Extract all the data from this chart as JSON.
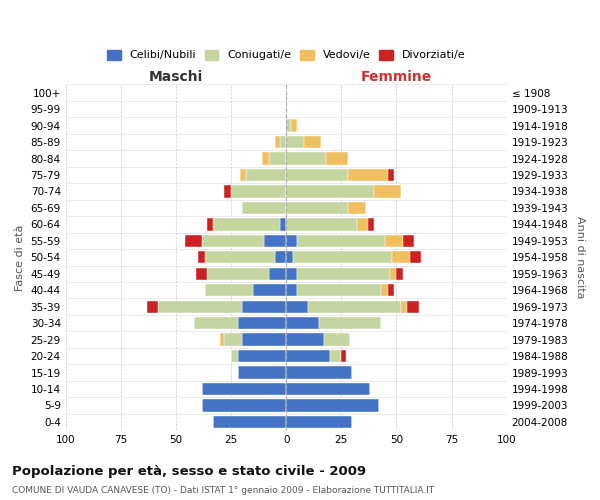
{
  "age_groups": [
    "0-4",
    "5-9",
    "10-14",
    "15-19",
    "20-24",
    "25-29",
    "30-34",
    "35-39",
    "40-44",
    "45-49",
    "50-54",
    "55-59",
    "60-64",
    "65-69",
    "70-74",
    "75-79",
    "80-84",
    "85-89",
    "90-94",
    "95-99",
    "100+"
  ],
  "birth_years": [
    "2004-2008",
    "1999-2003",
    "1994-1998",
    "1989-1993",
    "1984-1988",
    "1979-1983",
    "1974-1978",
    "1969-1973",
    "1964-1968",
    "1959-1963",
    "1954-1958",
    "1949-1953",
    "1944-1948",
    "1939-1943",
    "1934-1938",
    "1929-1933",
    "1924-1928",
    "1919-1923",
    "1914-1918",
    "1909-1913",
    "≤ 1908"
  ],
  "maschi": {
    "celibi": [
      33,
      38,
      38,
      22,
      22,
      20,
      22,
      20,
      15,
      8,
      5,
      10,
      3,
      0,
      0,
      0,
      0,
      0,
      0,
      0,
      0
    ],
    "coniugati": [
      0,
      0,
      0,
      0,
      3,
      8,
      20,
      38,
      22,
      28,
      32,
      28,
      30,
      20,
      25,
      18,
      8,
      3,
      0,
      0,
      0
    ],
    "vedovi": [
      0,
      0,
      0,
      0,
      0,
      2,
      0,
      0,
      0,
      0,
      0,
      0,
      0,
      0,
      0,
      3,
      3,
      2,
      0,
      0,
      0
    ],
    "divorziati": [
      0,
      0,
      0,
      0,
      0,
      0,
      0,
      5,
      0,
      5,
      3,
      8,
      3,
      0,
      3,
      0,
      0,
      0,
      0,
      0,
      0
    ]
  },
  "femmine": {
    "nubili": [
      30,
      42,
      38,
      30,
      20,
      17,
      15,
      10,
      5,
      5,
      3,
      5,
      0,
      0,
      0,
      0,
      0,
      0,
      0,
      0,
      0
    ],
    "coniugate": [
      0,
      0,
      0,
      0,
      5,
      12,
      28,
      42,
      38,
      42,
      45,
      40,
      32,
      28,
      40,
      28,
      18,
      8,
      2,
      0,
      0
    ],
    "vedove": [
      0,
      0,
      0,
      0,
      0,
      0,
      0,
      3,
      3,
      3,
      8,
      8,
      5,
      8,
      12,
      18,
      10,
      8,
      3,
      0,
      0
    ],
    "divorziate": [
      0,
      0,
      0,
      0,
      2,
      0,
      0,
      5,
      3,
      3,
      5,
      5,
      3,
      0,
      0,
      3,
      0,
      0,
      0,
      0,
      0
    ]
  },
  "color_celibi": "#4472c4",
  "color_coniugati": "#c5d5a0",
  "color_vedovi": "#f0c060",
  "color_divorziati": "#cc2222",
  "xlim": 100,
  "title": "Popolazione per età, sesso e stato civile - 2009",
  "subtitle": "COMUNE DI VAUDA CANAVESE (TO) - Dati ISTAT 1° gennaio 2009 - Elaborazione TUTTITALIA.IT",
  "ylabel_left": "Fasce di età",
  "ylabel_right": "Anni di nascita",
  "xlabel_left": "Maschi",
  "xlabel_right": "Femmine"
}
